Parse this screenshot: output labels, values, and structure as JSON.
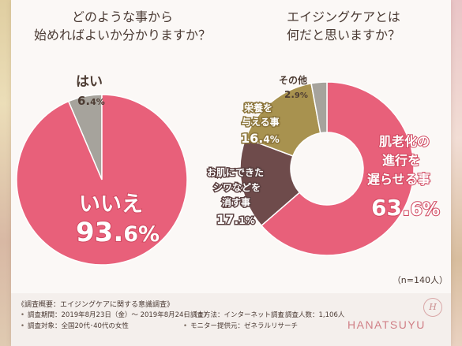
{
  "chart_data": [
    {
      "type": "pie",
      "title": "どのような事から\n始めればよいか分かりますか？",
      "slices": [
        {
          "label": "いいえ",
          "value": 93.6,
          "color": "#e8607a"
        },
        {
          "label": "はい",
          "value": 6.4,
          "color": "#a6a39c"
        }
      ]
    },
    {
      "type": "pie",
      "subtype": "donut",
      "title": "エイジングケアとは\n何だと思いますか？",
      "slices": [
        {
          "label": "肌老化の進行を遅らせる事",
          "value": 63.6,
          "color": "#e8607a"
        },
        {
          "label": "お肌にできたシワなどを消す事",
          "value": 17.1,
          "color": "#6e4b4b"
        },
        {
          "label": "栄養を与える事",
          "value": 16.4,
          "color": "#a8924f"
        },
        {
          "label": "その他",
          "value": 2.9,
          "color": "#a6a39c"
        }
      ]
    }
  ],
  "labels": {
    "left_yes_label": "はい",
    "left_yes_value": "6.",
    "left_yes_value_small": "4%",
    "left_no_label": "いいえ",
    "left_no_value": "93.",
    "left_no_value_small": "6%",
    "right_main_line1": "肌老化の",
    "right_main_line2": "進行を",
    "right_main_line3": "遅らせる事",
    "right_main_value": "63.",
    "right_main_value_small": "6%",
    "right_wrinkle_line1": "お肌にできた",
    "right_wrinkle_line2": "シワなどを",
    "right_wrinkle_line3": "消す事",
    "right_wrinkle_value": "17.",
    "right_wrinkle_value_small": "1%",
    "right_nutrition_line1": "栄養を",
    "right_nutrition_line2": "与える事",
    "right_nutrition_value": "16.",
    "right_nutrition_value_small": "4%",
    "right_other_label": "その他",
    "right_other_value": "2.",
    "right_other_value_small": "9%"
  },
  "n_note": "（n=140人）",
  "footer": {
    "title": "《調査概要：エイジングケアに関する意識調査》",
    "period": "調査期間：2019年8月23日（金）～ 2019年8月24日（土）",
    "method": "調査方法：インターネット調査",
    "count": "調査人数：1,106人",
    "target": "調査対象：全国20代･40代の女性",
    "provider": "モニター提供元：ゼネラルリサーチ"
  },
  "brand": {
    "name": "HANATSUYU",
    "mark": "H"
  }
}
